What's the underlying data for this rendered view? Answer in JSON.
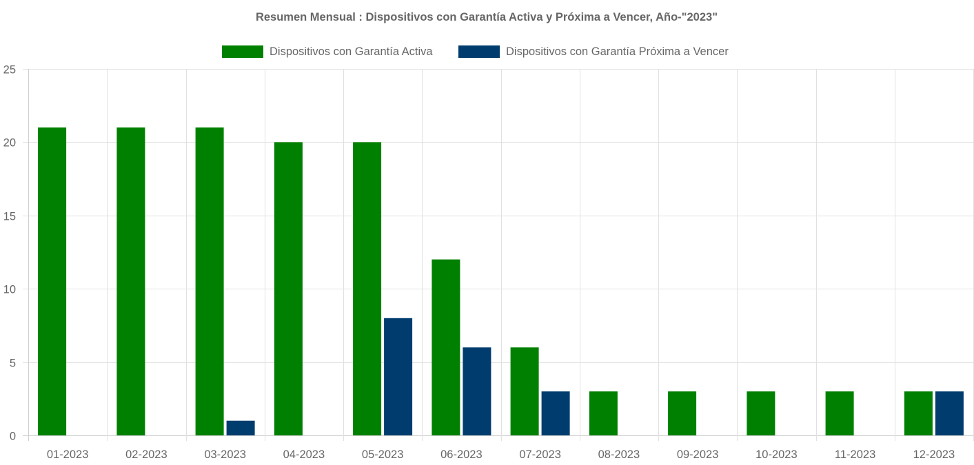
{
  "chart_data": {
    "type": "bar",
    "title": "Resumen Mensual : Dispositivos con Garantía Activa y Próxima a Vencer, Año-\"2023\"",
    "categories": [
      "01-2023",
      "02-2023",
      "03-2023",
      "04-2023",
      "05-2023",
      "06-2023",
      "07-2023",
      "08-2023",
      "09-2023",
      "10-2023",
      "11-2023",
      "12-2023"
    ],
    "series": [
      {
        "name": "Dispositivos con Garantía Activa",
        "color": "#008000",
        "values": [
          21,
          21,
          21,
          20,
          20,
          12,
          6,
          3,
          3,
          3,
          3,
          3
        ]
      },
      {
        "name": "Dispositivos con Garantía Próxima a Vencer",
        "color": "#003d6e",
        "values": [
          0,
          0,
          1,
          0,
          8,
          6,
          3,
          0,
          0,
          0,
          0,
          3
        ]
      }
    ],
    "ylim": [
      0,
      25
    ],
    "yticks": [
      0,
      5,
      10,
      15,
      20,
      25
    ],
    "grid": true,
    "legend_position": "top-center"
  }
}
